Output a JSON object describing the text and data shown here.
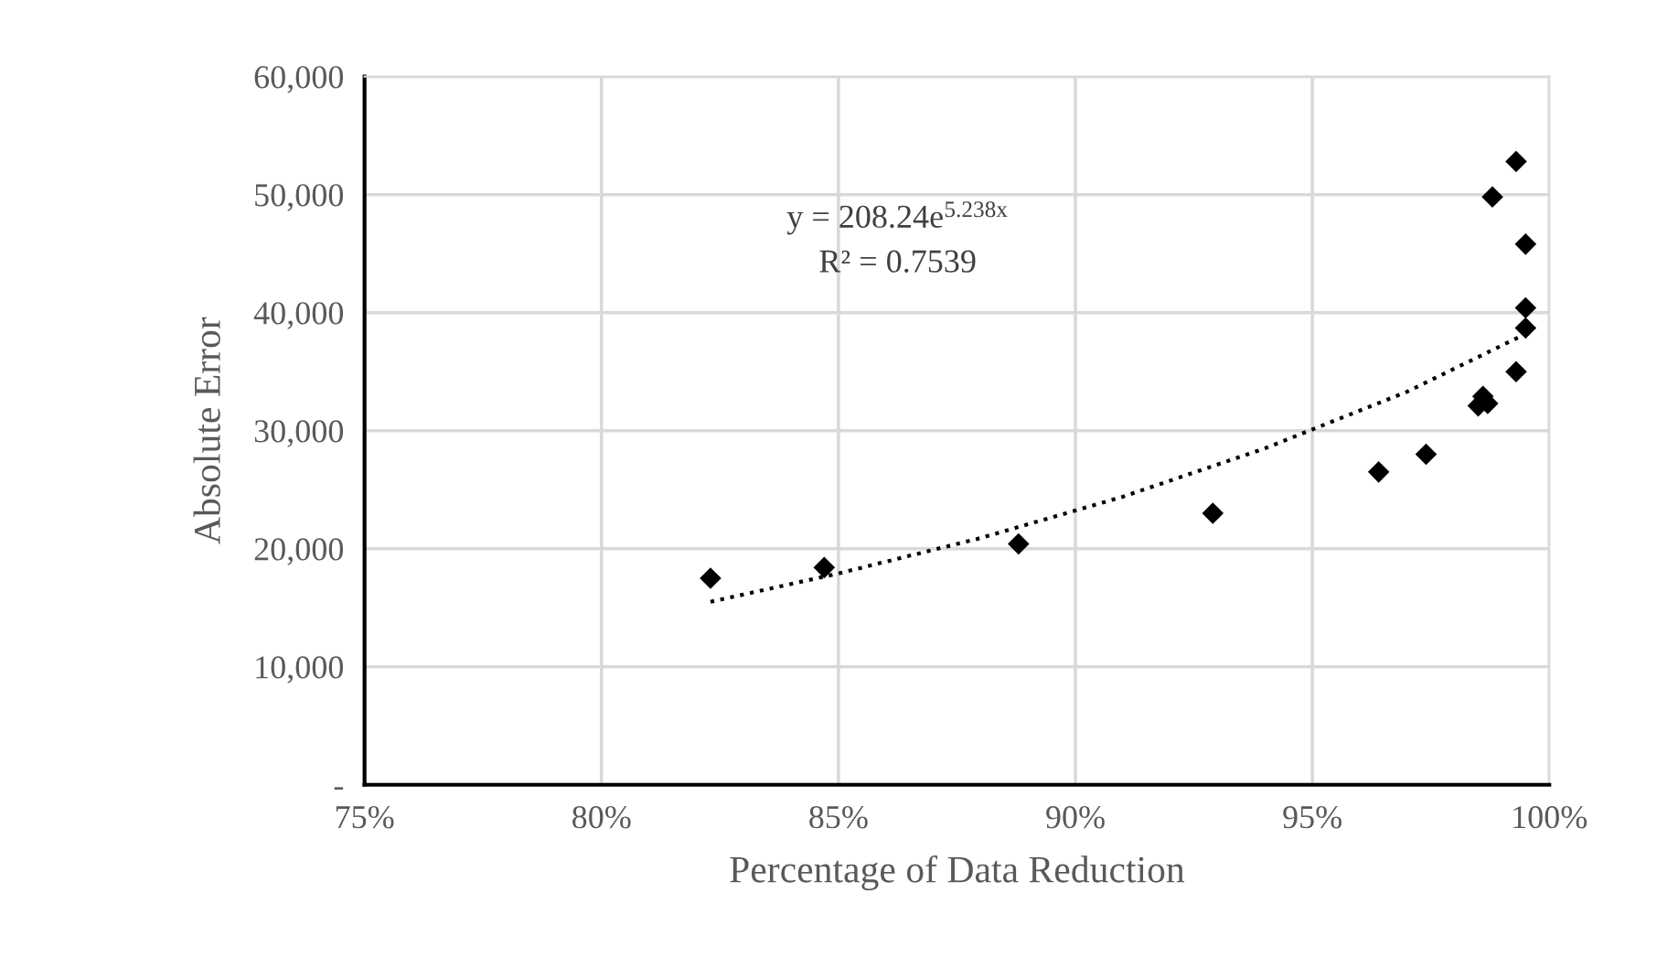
{
  "chart_data": {
    "type": "scatter",
    "xlabel": "Percentage of Data Reduction",
    "ylabel": "Absolute Error",
    "xlim": [
      75,
      100
    ],
    "xticks": [
      {
        "value": 75,
        "label": "75%"
      },
      {
        "value": 80,
        "label": "80%"
      },
      {
        "value": 85,
        "label": "85%"
      },
      {
        "value": 90,
        "label": "90%"
      },
      {
        "value": 95,
        "label": "95%"
      },
      {
        "value": 100,
        "label": "100%"
      }
    ],
    "ylim": [
      0,
      60000
    ],
    "yticks": [
      {
        "value": 0,
        "label": "-"
      },
      {
        "value": 10000,
        "label": "10,000"
      },
      {
        "value": 20000,
        "label": "20,000"
      },
      {
        "value": 30000,
        "label": "30,000"
      },
      {
        "value": 40000,
        "label": "40,000"
      },
      {
        "value": 50000,
        "label": "50,000"
      },
      {
        "value": 60000,
        "label": "60,000"
      }
    ],
    "grid": true,
    "legend": false,
    "marker": "diamond",
    "annotations": [
      "y = 208.24e$^{5.238x}$",
      "R² = 0.7539"
    ],
    "series": [
      {
        "color": "#000000",
        "x": [
          82.3,
          84.7,
          88.8,
          92.9,
          96.4,
          97.4,
          98.5,
          98.7,
          98.6,
          99.3,
          98.8,
          99.5,
          99.5,
          99.5,
          99.3
        ],
        "values": [
          17500,
          18400,
          20400,
          23000,
          26500,
          28000,
          32100,
          32300,
          32900,
          52800,
          49800,
          45800,
          40400,
          38700,
          35000
        ]
      },
      {
        "type": "line",
        "color": "#000000",
        "line_style": "dotted",
        "marker": "none",
        "x": [
          82.3,
          85,
          88,
          91,
          94,
          97,
          99.5
        ],
        "values": [
          15500,
          17900,
          20900,
          24400,
          28500,
          33300,
          38200
        ]
      }
    ]
  }
}
